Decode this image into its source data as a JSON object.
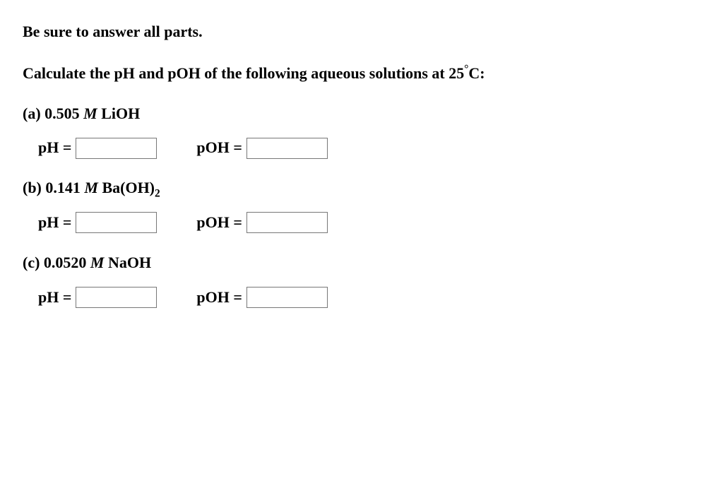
{
  "instruction": "Be sure to answer all parts.",
  "prompt_prefix": "Calculate the pH and pOH of the following aqueous solutions at 25",
  "prompt_degree": "°",
  "prompt_suffix": "C:",
  "parts": {
    "a": {
      "label_prefix": "(a) 0.505 ",
      "label_unit": "M",
      "label_compound": " LiOH",
      "ph_label": "pH =",
      "poh_label": "pOH =",
      "ph_value": "",
      "poh_value": ""
    },
    "b": {
      "label_prefix": "(b) 0.141 ",
      "label_unit": "M",
      "label_compound_pre": " Ba(OH)",
      "label_sub": "2",
      "ph_label": "pH =",
      "poh_label": "pOH =",
      "ph_value": "",
      "poh_value": ""
    },
    "c": {
      "label_prefix": "(c) 0.0520 ",
      "label_unit": "M",
      "label_compound": " NaOH",
      "ph_label": "pH =",
      "poh_label": "pOH =",
      "ph_value": "",
      "poh_value": ""
    }
  }
}
